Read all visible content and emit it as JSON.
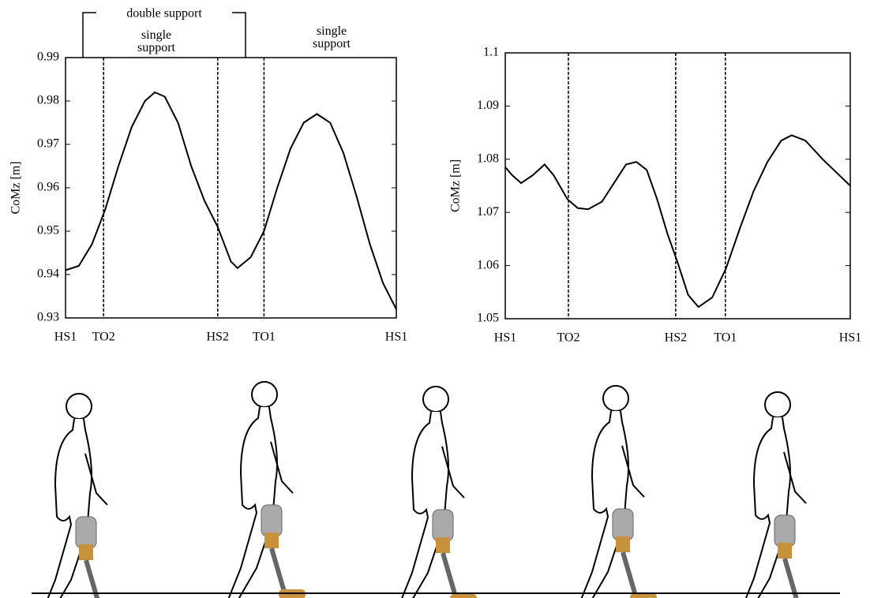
{
  "chart_data": [
    {
      "type": "line",
      "ylabel": "CoMz [m]",
      "annotations": [
        "double support",
        "single support",
        "single support"
      ],
      "xlim": [
        0,
        100
      ],
      "xticks": [
        {
          "value": 0,
          "label": "HS1"
        },
        {
          "value": 11.5,
          "label": "TO2"
        },
        {
          "value": 46,
          "label": "HS2"
        },
        {
          "value": 60,
          "label": "TO1"
        },
        {
          "value": 100,
          "label": "HS1"
        }
      ],
      "ylim": [
        0.93,
        0.99
      ],
      "yticks": [
        0.93,
        0.94,
        0.95,
        0.96,
        0.97,
        0.98,
        0.99
      ],
      "color": "#000000",
      "x": [
        0,
        4,
        8,
        12,
        16,
        20,
        24,
        27,
        30,
        34,
        38,
        42,
        46,
        50,
        52,
        56,
        60,
        64,
        68,
        72,
        76,
        80,
        84,
        88,
        92,
        96,
        100
      ],
      "values": [
        0.941,
        0.942,
        0.947,
        0.955,
        0.965,
        0.974,
        0.98,
        0.982,
        0.981,
        0.975,
        0.965,
        0.957,
        0.951,
        0.943,
        0.9415,
        0.944,
        0.95,
        0.96,
        0.969,
        0.975,
        0.977,
        0.975,
        0.968,
        0.958,
        0.947,
        0.938,
        0.932
      ]
    },
    {
      "type": "line",
      "ylabel": "CoMz [m]",
      "xlim": [
        0,
        100
      ],
      "xticks": [
        {
          "value": 0,
          "label": "HS1"
        },
        {
          "value": 18.3,
          "label": "TO2"
        },
        {
          "value": 49.4,
          "label": "HS2"
        },
        {
          "value": 63.8,
          "label": "TO1"
        },
        {
          "value": 100,
          "label": "HS1"
        }
      ],
      "ylim": [
        1.05,
        1.1
      ],
      "yticks": [
        1.05,
        1.06,
        1.07,
        1.08,
        1.09,
        1.1
      ],
      "color": "#000000",
      "x": [
        0,
        2,
        4.6,
        8,
        11.4,
        14,
        18,
        21,
        24,
        28,
        32,
        35,
        38,
        41,
        44,
        47,
        50,
        53,
        56,
        60,
        64,
        68,
        72,
        76,
        80,
        83,
        87,
        92,
        96,
        100
      ],
      "values": [
        1.0785,
        1.077,
        1.0755,
        1.077,
        1.079,
        1.077,
        1.0725,
        1.0708,
        1.0706,
        1.072,
        1.076,
        1.079,
        1.0795,
        1.078,
        1.0725,
        1.066,
        1.0605,
        1.0545,
        1.0522,
        1.054,
        1.0595,
        1.067,
        1.074,
        1.0795,
        1.0835,
        1.0845,
        1.0835,
        1.08,
        1.0775,
        1.075
      ]
    }
  ]
}
